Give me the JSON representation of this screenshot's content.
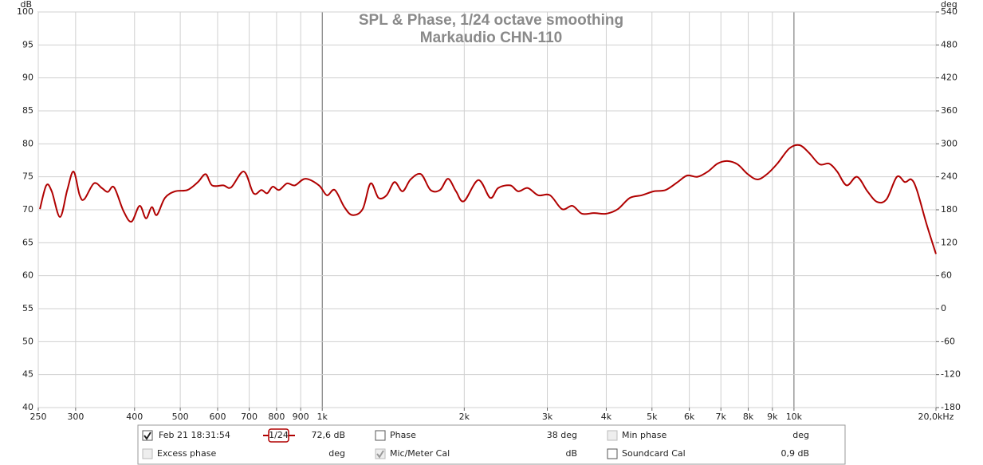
{
  "chart_data": {
    "type": "line",
    "title": "SPL & Phase, 1/24 octave smoothing",
    "subtitle": "Markaudio CHN-110",
    "y_label": "dB",
    "y2_label": "deg",
    "x_scale": "log",
    "grid": true,
    "xlim": [
      250,
      20000
    ],
    "xticks": [
      250,
      300,
      400,
      500,
      600,
      700,
      800,
      900,
      {
        "value": 1000,
        "label": "1k"
      },
      {
        "value": 2000,
        "label": "2k"
      },
      {
        "value": 3000,
        "label": "3k"
      },
      {
        "value": 4000,
        "label": "4k"
      },
      {
        "value": 5000,
        "label": "5k"
      },
      {
        "value": 6000,
        "label": "6k"
      },
      {
        "value": 7000,
        "label": "7k"
      },
      {
        "value": 8000,
        "label": "8k"
      },
      {
        "value": 9000,
        "label": "9k"
      },
      {
        "value": 10000,
        "label": "10k"
      },
      {
        "value": 20000,
        "label": "20,0kHz"
      }
    ],
    "ylim": [
      40,
      100
    ],
    "yticks": [
      40,
      45,
      50,
      55,
      60,
      65,
      70,
      75,
      80,
      85,
      90,
      95,
      100
    ],
    "y2lim": [
      -180,
      540
    ],
    "y2ticks": [
      -180,
      -120,
      -60,
      0,
      60,
      120,
      180,
      240,
      300,
      360,
      420,
      480,
      540
    ],
    "x": [
      252,
      260,
      267,
      278,
      288,
      297,
      306,
      313,
      328,
      341,
      351,
      362,
      379,
      394,
      410,
      423,
      435,
      446,
      464,
      488,
      518,
      545,
      566,
      584,
      617,
      641,
      682,
      715,
      743,
      764,
      785,
      810,
      842,
      875,
      921,
      984,
      1023,
      1063,
      1114,
      1158,
      1218,
      1266,
      1316,
      1369,
      1423,
      1480,
      1539,
      1619,
      1696,
      1777,
      1848,
      1921,
      1997,
      2142,
      2271,
      2360,
      2503,
      2602,
      2727,
      2869,
      3040,
      3223,
      3391,
      3553,
      3767,
      3994,
      4233,
      4488,
      4757,
      5044,
      5346,
      5668,
      5939,
      6246,
      6570,
      6886,
      7216,
      7590,
      7983,
      8365,
      8766,
      9220,
      9775,
      10280,
      10773,
      11332,
      11873,
      12345,
      12935,
      13607,
      14314,
      14995,
      15715,
      16530,
      17186,
      17730,
      18218,
      19090,
      20000
    ],
    "series": [
      {
        "name": "Feb 21 18:31:54",
        "color": "#b00000",
        "values": [
          70.1,
          73.7,
          72.8,
          68.9,
          73,
          75.8,
          72.2,
          71.6,
          74,
          73.3,
          72.7,
          73.4,
          69.8,
          68.2,
          70.6,
          68.7,
          70.4,
          69.2,
          71.8,
          72.8,
          73,
          74.2,
          75.4,
          73.7,
          73.7,
          73.4,
          75.8,
          72.5,
          73,
          72.5,
          73.5,
          73,
          74,
          73.7,
          74.7,
          73.7,
          72.2,
          73,
          70.4,
          69.2,
          70.1,
          74,
          71.8,
          72.2,
          74.2,
          72.8,
          74.6,
          75.4,
          73,
          73,
          74.7,
          72.8,
          71.3,
          74.5,
          71.8,
          73.3,
          73.7,
          72.8,
          73.3,
          72.2,
          72.2,
          70.1,
          70.6,
          69.4,
          69.5,
          69.4,
          70.1,
          71.8,
          72.2,
          72.8,
          73,
          74.2,
          75.2,
          75,
          75.8,
          77,
          77.4,
          76.9,
          75.4,
          74.6,
          75.4,
          77,
          79.3,
          79.8,
          78.6,
          76.9,
          77,
          75.8,
          73.7,
          75,
          72.8,
          71.2,
          71.6,
          75,
          74.2,
          74.6,
          73,
          67.9,
          63.3
        ]
      }
    ]
  },
  "legend_panel": {
    "smoothing": "1/24",
    "spl_readout": "72,6 dB",
    "series_checked": true,
    "items": [
      {
        "label": "Phase",
        "readout": "38 deg",
        "checked": false,
        "enabled": true,
        "accent": true
      },
      {
        "label": "Min phase",
        "readout": "deg",
        "checked": false,
        "enabled": false,
        "accent": false
      },
      {
        "label": "Excess phase",
        "readout": "deg",
        "checked": false,
        "enabled": false,
        "accent": false
      },
      {
        "label": "Mic/Meter Cal",
        "readout": "dB",
        "checked": true,
        "enabled": false,
        "accent": false
      },
      {
        "label": "Soundcard Cal",
        "readout": "0,9 dB",
        "checked": false,
        "enabled": true,
        "accent": false
      }
    ]
  }
}
